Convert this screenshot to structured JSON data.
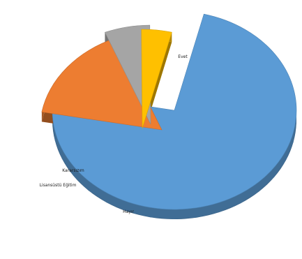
{
  "chart_data": {
    "type": "pie",
    "style": "3d-exploded",
    "title": "",
    "slices": [
      {
        "label": "Evet",
        "value": 74.0,
        "color": "#5b9bd5"
      },
      {
        "label": "Hayır",
        "value": 16.0,
        "color": "#ed7d31"
      },
      {
        "label": "Kararsızım",
        "value": 6.0,
        "color": "#a5a5a5"
      },
      {
        "label": "Lisansüstü Eğitim",
        "value": 4.0,
        "color": "#ffc000"
      }
    ]
  }
}
